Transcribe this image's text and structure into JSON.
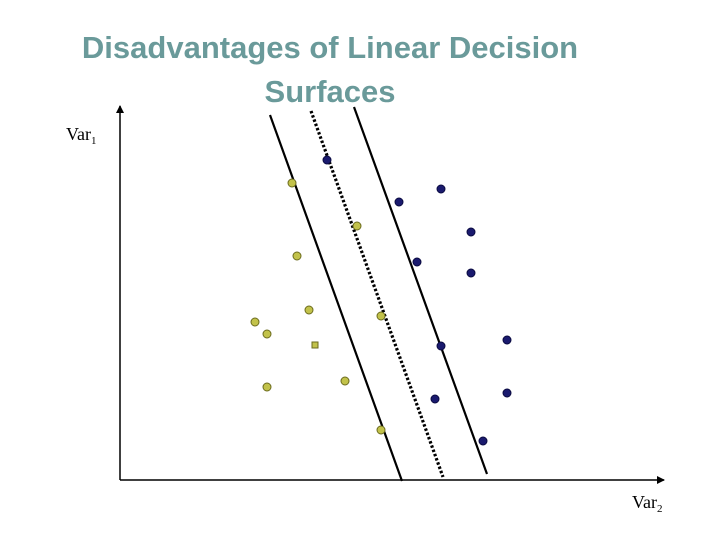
{
  "title_line1": "Disadvantages of Linear Decision",
  "title_line2": "Surfaces",
  "axes": {
    "y_label": "Var",
    "y_sub": "1",
    "x_label": "Var",
    "x_sub": "2"
  },
  "colors": {
    "title": "#6a9a9a",
    "class_a_fill": "#c2c24a",
    "class_a_stroke": "#6b6b1e",
    "class_b_fill": "#1a1a6e",
    "class_b_stroke": "#0a0a40",
    "line": "#000000"
  }
}
